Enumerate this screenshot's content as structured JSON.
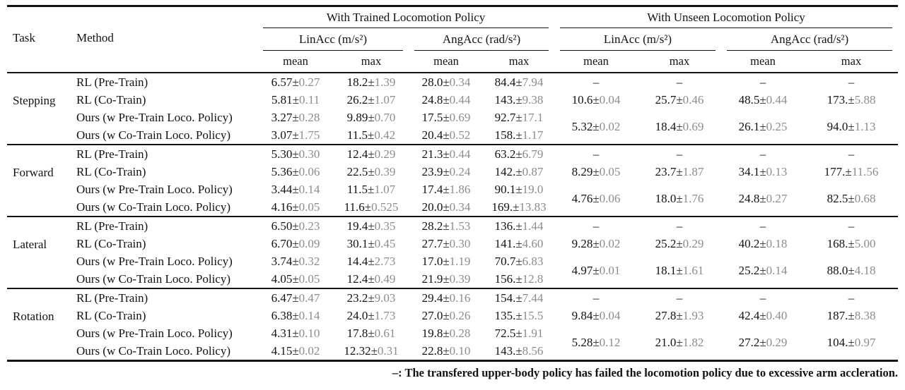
{
  "symbols": {
    "pm": "±",
    "dash": "–"
  },
  "header": {
    "task": "Task",
    "method": "Method",
    "col_mean": "mean",
    "col_max": "max",
    "groups": [
      {
        "label": "With Trained Locomotion Policy"
      },
      {
        "label": "With Unseen Locomotion Policy"
      }
    ],
    "subgroups": [
      {
        "label": "LinAcc (m/s²)"
      },
      {
        "label": "AngAcc (rad/s²)"
      },
      {
        "label": "LinAcc (m/s²)"
      },
      {
        "label": "AngAcc (rad/s²)"
      }
    ]
  },
  "sections": [
    {
      "task": "Stepping",
      "rows": [
        {
          "method": "RL (Pre-Train)",
          "trained": [
            {
              "m": "6.57",
              "s": "0.27"
            },
            {
              "m": "18.2",
              "s": "1.39"
            },
            {
              "m": "28.0",
              "s": "0.34"
            },
            {
              "m": "84.4",
              "s": "7.94"
            }
          ]
        },
        {
          "method": "RL (Co-Train)",
          "trained": [
            {
              "m": "5.81",
              "s": "0.11"
            },
            {
              "m": "26.2",
              "s": "1.07"
            },
            {
              "m": "24.8",
              "s": "0.44"
            },
            {
              "m": "143.",
              "s": "9.38"
            }
          ],
          "unseen": [
            {
              "m": "10.6",
              "s": "0.04"
            },
            {
              "m": "25.7",
              "s": "0.46"
            },
            {
              "m": "48.5",
              "s": "0.44"
            },
            {
              "m": "173.",
              "s": "5.88"
            }
          ]
        },
        {
          "method": "Ours (w Pre-Train Loco. Policy)",
          "trained": [
            {
              "m": "3.27",
              "s": "0.28"
            },
            {
              "m": "9.89",
              "s": "0.70"
            },
            {
              "m": "17.5",
              "s": "0.69"
            },
            {
              "m": "92.7",
              "s": "17.1"
            }
          ]
        },
        {
          "method": "Ours (w Co-Train Loco. Policy)",
          "trained": [
            {
              "m": "3.07",
              "s": "1.75"
            },
            {
              "m": "11.5",
              "s": "0.42"
            },
            {
              "m": "20.4",
              "s": "0.52"
            },
            {
              "m": "158.",
              "s": "1.17"
            }
          ]
        }
      ],
      "unseen_merged": [
        {
          "m": "5.32",
          "s": "0.02"
        },
        {
          "m": "18.4",
          "s": "0.69"
        },
        {
          "m": "26.1",
          "s": "0.25"
        },
        {
          "m": "94.0",
          "s": "1.13"
        }
      ]
    },
    {
      "task": "Forward",
      "rows": [
        {
          "method": "RL (Pre-Train)",
          "trained": [
            {
              "m": "5.30",
              "s": "0.30"
            },
            {
              "m": "12.4",
              "s": "0.29"
            },
            {
              "m": "21.3",
              "s": "0.44"
            },
            {
              "m": "63.2",
              "s": "6.79"
            }
          ]
        },
        {
          "method": "RL (Co-Train)",
          "trained": [
            {
              "m": "5.36",
              "s": "0.06"
            },
            {
              "m": "22.5",
              "s": "0.39"
            },
            {
              "m": "23.9",
              "s": "0.24"
            },
            {
              "m": "142.",
              "s": "0.87"
            }
          ],
          "unseen": [
            {
              "m": "8.29",
              "s": "0.05"
            },
            {
              "m": "23.7",
              "s": "1.87"
            },
            {
              "m": "34.1",
              "s": "0.13"
            },
            {
              "m": "177.",
              "s": "11.56"
            }
          ]
        },
        {
          "method": "Ours (w Pre-Train Loco. Policy)",
          "trained": [
            {
              "m": "3.44",
              "s": "0.14"
            },
            {
              "m": "11.5",
              "s": "1.07"
            },
            {
              "m": "17.4",
              "s": "1.86"
            },
            {
              "m": "90.1",
              "s": "19.0"
            }
          ]
        },
        {
          "method": "Ours (w Co-Train Loco. Policy)",
          "trained": [
            {
              "m": "4.16",
              "s": "0.05"
            },
            {
              "m": "11.6",
              "s": "0.525"
            },
            {
              "m": "20.0",
              "s": "0.34"
            },
            {
              "m": "169.",
              "s": "13.83"
            }
          ]
        }
      ],
      "unseen_merged": [
        {
          "m": "4.76",
          "s": "0.06"
        },
        {
          "m": "18.0",
          "s": "1.76"
        },
        {
          "m": "24.8",
          "s": "0.27"
        },
        {
          "m": "82.5",
          "s": "0.68"
        }
      ]
    },
    {
      "task": "Lateral",
      "rows": [
        {
          "method": "RL (Pre-Train)",
          "trained": [
            {
              "m": "6.50",
              "s": "0.23"
            },
            {
              "m": "19.4",
              "s": "0.35"
            },
            {
              "m": "28.2",
              "s": "1.53"
            },
            {
              "m": "136.",
              "s": "1.44"
            }
          ]
        },
        {
          "method": "RL (Co-Train)",
          "trained": [
            {
              "m": "6.70",
              "s": "0.09"
            },
            {
              "m": "30.1",
              "s": "0.45"
            },
            {
              "m": "27.7",
              "s": "0.30"
            },
            {
              "m": "141.",
              "s": "4.60"
            }
          ],
          "unseen": [
            {
              "m": "9.28",
              "s": "0.02"
            },
            {
              "m": "25.2",
              "s": "0.29"
            },
            {
              "m": "40.2",
              "s": "0.18"
            },
            {
              "m": "168.",
              "s": "5.00"
            }
          ]
        },
        {
          "method": "Ours (w Pre-Train Loco. Policy)",
          "trained": [
            {
              "m": "3.74",
              "s": "0.32"
            },
            {
              "m": "14.4",
              "s": "2.73"
            },
            {
              "m": "17.0",
              "s": "1.19"
            },
            {
              "m": "70.7",
              "s": "6.83"
            }
          ]
        },
        {
          "method": "Ours (w Co-Train Loco. Policy)",
          "trained": [
            {
              "m": "4.05",
              "s": "0.05"
            },
            {
              "m": "12.4",
              "s": "0.49"
            },
            {
              "m": "21.9",
              "s": "0.39"
            },
            {
              "m": "156.",
              "s": "12.8"
            }
          ]
        }
      ],
      "unseen_merged": [
        {
          "m": "4.97",
          "s": "0.01"
        },
        {
          "m": "18.1",
          "s": "1.61"
        },
        {
          "m": "25.2",
          "s": "0.14"
        },
        {
          "m": "88.0",
          "s": "4.18"
        }
      ]
    },
    {
      "task": "Rotation",
      "rows": [
        {
          "method": "RL (Pre-Train)",
          "trained": [
            {
              "m": "6.47",
              "s": "0.47"
            },
            {
              "m": "23.2",
              "s": "9.03"
            },
            {
              "m": "29.4",
              "s": "0.16"
            },
            {
              "m": "154.",
              "s": "7.44"
            }
          ]
        },
        {
          "method": "RL (Co-Train)",
          "trained": [
            {
              "m": "6.38",
              "s": "0.14"
            },
            {
              "m": "24.0",
              "s": "1.73"
            },
            {
              "m": "27.0",
              "s": "0.26"
            },
            {
              "m": "135.",
              "s": "15.5"
            }
          ],
          "unseen": [
            {
              "m": "9.84",
              "s": "0.04"
            },
            {
              "m": "27.8",
              "s": "1.93"
            },
            {
              "m": "42.4",
              "s": "0.40"
            },
            {
              "m": "187.",
              "s": "8.38"
            }
          ]
        },
        {
          "method": "Ours (w Pre-Train Loco. Policy)",
          "trained": [
            {
              "m": "4.31",
              "s": "0.10"
            },
            {
              "m": "17.8",
              "s": "0.61"
            },
            {
              "m": "19.8",
              "s": "0.28"
            },
            {
              "m": "72.5",
              "s": "1.91"
            }
          ]
        },
        {
          "method": "Ours (w Co-Train Loco. Policy)",
          "trained": [
            {
              "m": "4.15",
              "s": "0.02"
            },
            {
              "m": "12.32",
              "s": "0.31"
            },
            {
              "m": "22.8",
              "s": "0.10"
            },
            {
              "m": "143.",
              "s": "8.56"
            }
          ]
        }
      ],
      "unseen_merged": [
        {
          "m": "5.28",
          "s": "0.12"
        },
        {
          "m": "21.0",
          "s": "1.82"
        },
        {
          "m": "27.2",
          "s": "0.29"
        },
        {
          "m": "104.",
          "s": "0.97"
        }
      ]
    }
  ],
  "footnote": {
    "symbol": "–",
    "text": ": The transfered upper-body policy has failed the locomotion policy due to excessive arm accleration."
  }
}
